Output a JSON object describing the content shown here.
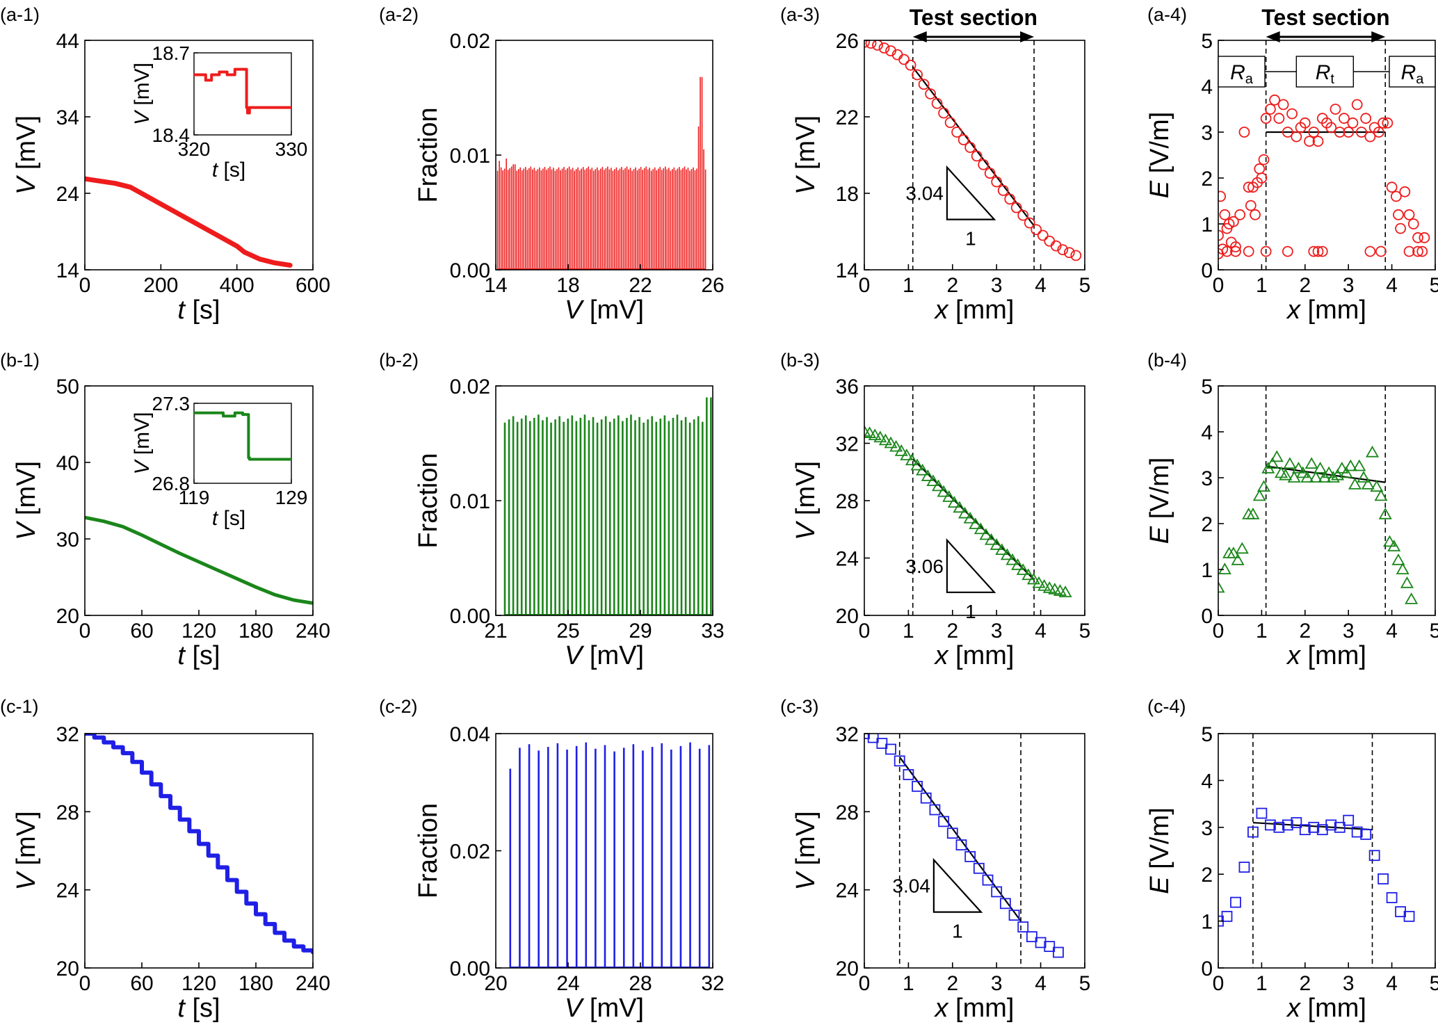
{
  "colors": {
    "red": "#ee1c1c",
    "green": "#1a861a",
    "blue": "#1f1fe6",
    "axis": "#000000"
  },
  "annotations": {
    "test_section": "Test section",
    "Ra_left": "R",
    "Ra_left_sub": "a",
    "Rt": "R",
    "Rt_sub": "t",
    "Ra_right": "R",
    "Ra_right_sub": "a"
  },
  "chart_data": [
    {
      "id": "a-1",
      "panel_label": "(a-1)",
      "type": "line",
      "color": "red",
      "xlabel_italic": "t",
      "xlabel_unit": " [s]",
      "ylabel_italic": "V",
      "ylabel_unit": " [mV]",
      "xlim": [
        0,
        600
      ],
      "ylim": [
        14,
        44
      ],
      "xticks": [
        0,
        200,
        400,
        600
      ],
      "yticks": [
        14,
        24,
        34,
        44
      ],
      "line_width": 7,
      "x": [
        0,
        40,
        80,
        120,
        160,
        200,
        240,
        280,
        320,
        360,
        400,
        420,
        460,
        500,
        540
      ],
      "y": [
        25.9,
        25.6,
        25.3,
        24.8,
        23.7,
        22.6,
        21.5,
        20.4,
        19.3,
        18.2,
        17.1,
        16.3,
        15.4,
        14.9,
        14.6
      ],
      "inset": {
        "xlim": [
          320,
          330
        ],
        "ylim": [
          18.4,
          18.7
        ],
        "xticks": [
          320,
          330
        ],
        "yticks": [
          18.4,
          18.7
        ],
        "xlabel_italic": "t",
        "xlabel_unit": " [s]",
        "ylabel_italic": "V",
        "ylabel_unit": " [mV]",
        "x": [
          320,
          321.2,
          321.2,
          321.8,
          321.8,
          322.6,
          322.6,
          323.4,
          323.4,
          324.2,
          324.2,
          325.4,
          325.4,
          325.5,
          325.5,
          325.7,
          325.7,
          330
        ],
        "y": [
          18.62,
          18.62,
          18.6,
          18.6,
          18.62,
          18.62,
          18.63,
          18.63,
          18.62,
          18.62,
          18.64,
          18.64,
          18.5,
          18.5,
          18.48,
          18.48,
          18.5,
          18.5
        ]
      }
    },
    {
      "id": "a-2",
      "panel_label": "(a-2)",
      "type": "bar",
      "color": "red",
      "xlabel_italic": "V",
      "xlabel_unit": " [mV]",
      "ylabel": "Fraction",
      "xlim": [
        14,
        26
      ],
      "ylim": [
        0,
        0.02
      ],
      "xticks": [
        14,
        18,
        22,
        26
      ],
      "yticks": [
        0.0,
        0.01,
        0.02
      ],
      "ytick_labels": [
        "0.00",
        "0.01",
        "0.02"
      ],
      "spikes": {
        "start": 14.1,
        "end": 25.6,
        "count": 120,
        "base": 0.009,
        "heights": [
          [
            14.2,
            0.0095
          ],
          [
            14.6,
            0.0097
          ],
          [
            15.0,
            0.0092
          ],
          [
            25.2,
            0.0125
          ],
          [
            25.35,
            0.0168
          ],
          [
            25.5,
            0.0105
          ]
        ]
      }
    },
    {
      "id": "a-3",
      "panel_label": "(a-3)",
      "type": "scatter",
      "marker": "circle",
      "color": "red",
      "xlabel_italic": "x",
      "xlabel_unit": " [mm]",
      "ylabel_italic": "V",
      "ylabel_unit": " [mV]",
      "xlim": [
        0,
        5
      ],
      "ylim": [
        14,
        26
      ],
      "xticks": [
        0,
        1,
        2,
        3,
        4,
        5
      ],
      "yticks": [
        14,
        18,
        22,
        26
      ],
      "vlines": [
        1.1,
        3.85
      ],
      "show_test_section": true,
      "points_x": [
        0.0,
        0.15,
        0.3,
        0.45,
        0.6,
        0.75,
        0.9,
        1.05,
        1.2,
        1.35,
        1.5,
        1.65,
        1.8,
        1.95,
        2.1,
        2.25,
        2.4,
        2.55,
        2.7,
        2.85,
        3.0,
        3.15,
        3.3,
        3.45,
        3.6,
        3.75,
        3.9,
        4.05,
        4.2,
        4.35,
        4.5,
        4.65,
        4.8
      ],
      "points_y": [
        25.9,
        25.85,
        25.75,
        25.6,
        25.45,
        25.25,
        25.0,
        24.7,
        24.2,
        23.7,
        23.2,
        22.7,
        22.2,
        21.7,
        21.2,
        20.8,
        20.4,
        19.95,
        19.5,
        19.05,
        18.6,
        18.15,
        17.7,
        17.25,
        16.85,
        16.45,
        16.1,
        15.8,
        15.5,
        15.25,
        15.05,
        14.9,
        14.75
      ],
      "fit_x": [
        1.1,
        3.85
      ],
      "fit_y": [
        24.6,
        16.3
      ],
      "slope_label": "3.04",
      "run_label": "1"
    },
    {
      "id": "a-4",
      "panel_label": "(a-4)",
      "type": "scatter",
      "marker": "circle",
      "color": "red",
      "xlabel_italic": "x",
      "xlabel_unit": " [mm]",
      "ylabel_italic": "E",
      "ylabel_unit": " [V/m]",
      "xlim": [
        0,
        5
      ],
      "ylim": [
        0,
        5
      ],
      "xticks": [
        0,
        1,
        2,
        3,
        4,
        5
      ],
      "yticks": [
        0,
        1,
        2,
        3,
        4,
        5
      ],
      "vlines": [
        1.1,
        3.85
      ],
      "show_test_section": true,
      "show_resistors": true,
      "points_x": [
        0.0,
        0.05,
        0.1,
        0.15,
        0.2,
        0.25,
        0.3,
        0.35,
        0.4,
        0.5,
        0.6,
        0.7,
        0.75,
        0.8,
        0.85,
        0.9,
        0.95,
        1.0,
        1.05,
        1.1,
        1.2,
        1.3,
        1.4,
        1.5,
        1.6,
        1.7,
        1.8,
        1.9,
        2.0,
        2.1,
        2.2,
        2.3,
        2.4,
        2.5,
        2.6,
        2.7,
        2.8,
        2.9,
        3.0,
        3.1,
        3.2,
        3.3,
        3.4,
        3.5,
        3.6,
        3.7,
        3.8,
        3.9,
        4.0,
        4.1,
        4.15,
        4.2,
        4.3,
        4.4,
        4.5,
        4.6,
        4.7,
        4.75,
        0.0,
        0.2,
        0.4,
        0.7,
        1.1,
        1.6,
        2.2,
        2.3,
        2.4,
        3.5,
        3.75,
        4.4,
        4.6
      ],
      "points_y": [
        0.75,
        1.6,
        0.45,
        1.2,
        0.9,
        1.0,
        0.6,
        1.05,
        0.5,
        1.2,
        3.0,
        1.8,
        1.4,
        1.8,
        1.2,
        1.9,
        2.2,
        2.0,
        2.4,
        3.3,
        3.5,
        3.7,
        3.3,
        3.6,
        3.0,
        3.4,
        2.9,
        3.1,
        3.2,
        2.8,
        3.0,
        2.8,
        3.3,
        3.2,
        3.1,
        3.5,
        3.0,
        3.3,
        3.0,
        3.2,
        3.6,
        3.0,
        3.3,
        2.9,
        3.1,
        3.0,
        3.2,
        3.2,
        1.8,
        1.6,
        1.2,
        0.9,
        1.7,
        1.2,
        1.0,
        0.7,
        0.4,
        0.7,
        0.35,
        0.4,
        0.4,
        0.4,
        0.4,
        0.4,
        0.4,
        0.4,
        0.4,
        0.4,
        0.4,
        0.4,
        0.4
      ],
      "fit_x": [
        1.1,
        3.85
      ],
      "fit_y": [
        3.0,
        3.0
      ]
    },
    {
      "id": "b-1",
      "panel_label": "(b-1)",
      "type": "line",
      "color": "green",
      "xlabel_italic": "t",
      "xlabel_unit": " [s]",
      "ylabel_italic": "V",
      "ylabel_unit": " [mV]",
      "xlim": [
        0,
        240
      ],
      "ylim": [
        20,
        50
      ],
      "xticks": [
        0,
        60,
        120,
        180,
        240
      ],
      "yticks": [
        20,
        30,
        40,
        50
      ],
      "line_width": 5,
      "x": [
        0,
        20,
        40,
        60,
        80,
        100,
        120,
        140,
        160,
        180,
        200,
        220,
        240
      ],
      "y": [
        32.8,
        32.3,
        31.6,
        30.5,
        29.3,
        28.1,
        27.0,
        25.9,
        24.8,
        23.7,
        22.7,
        22.0,
        21.6
      ],
      "inset": {
        "xlim": [
          119,
          129
        ],
        "ylim": [
          26.8,
          27.3
        ],
        "xticks": [
          119,
          129
        ],
        "yticks": [
          26.8,
          27.3
        ],
        "xlabel_italic": "t",
        "xlabel_unit": " [s]",
        "ylabel_italic": "V",
        "ylabel_unit": " [mV]",
        "x": [
          119,
          122.0,
          122.0,
          123.2,
          123.2,
          124.0,
          124.0,
          124.6,
          124.6,
          124.7,
          124.7,
          129
        ],
        "y": [
          27.24,
          27.24,
          27.22,
          27.22,
          27.24,
          27.24,
          27.23,
          27.23,
          26.96,
          26.96,
          26.95,
          26.95
        ]
      }
    },
    {
      "id": "b-2",
      "panel_label": "(b-2)",
      "type": "bar",
      "color": "green",
      "xlabel_italic": "V",
      "xlabel_unit": " [mV]",
      "ylabel": "Fraction",
      "xlim": [
        21,
        33
      ],
      "ylim": [
        0,
        0.02
      ],
      "xticks": [
        21,
        25,
        29,
        33
      ],
      "yticks": [
        0.0,
        0.01,
        0.02
      ],
      "ytick_labels": [
        "0.00",
        "0.01",
        "0.02"
      ],
      "spikes": {
        "start": 21.5,
        "end": 32.9,
        "count": 50,
        "base": 0.0175,
        "heights": [
          [
            32.8,
            0.019
          ]
        ]
      }
    },
    {
      "id": "b-3",
      "panel_label": "(b-3)",
      "type": "scatter",
      "marker": "triangle",
      "color": "green",
      "xlabel_italic": "x",
      "xlabel_unit": " [mm]",
      "ylabel_italic": "V",
      "ylabel_unit": " [mV]",
      "xlim": [
        0,
        5
      ],
      "ylim": [
        20,
        36
      ],
      "xticks": [
        0,
        1,
        2,
        3,
        4,
        5
      ],
      "yticks": [
        20,
        24,
        28,
        32,
        36
      ],
      "vlines": [
        1.1,
        3.85
      ],
      "points_x": [
        0.0,
        0.12,
        0.24,
        0.36,
        0.48,
        0.6,
        0.72,
        0.84,
        0.96,
        1.08,
        1.2,
        1.32,
        1.44,
        1.56,
        1.68,
        1.8,
        1.92,
        2.04,
        2.16,
        2.28,
        2.4,
        2.52,
        2.64,
        2.76,
        2.88,
        3.0,
        3.12,
        3.24,
        3.36,
        3.48,
        3.6,
        3.72,
        3.84,
        3.96,
        4.08,
        4.2,
        4.32,
        4.44,
        4.56
      ],
      "points_y": [
        32.8,
        32.7,
        32.55,
        32.4,
        32.2,
        32.0,
        31.75,
        31.45,
        31.15,
        30.8,
        30.45,
        30.1,
        29.7,
        29.35,
        29.0,
        28.6,
        28.25,
        27.85,
        27.5,
        27.1,
        26.75,
        26.35,
        26.0,
        25.6,
        25.25,
        24.9,
        24.55,
        24.2,
        23.85,
        23.5,
        23.15,
        22.8,
        22.5,
        22.25,
        22.05,
        21.9,
        21.8,
        21.7,
        21.6
      ],
      "fit_x": [
        1.1,
        3.85
      ],
      "fit_y": [
        30.9,
        22.5
      ],
      "slope_label": "3.06",
      "run_label": "1"
    },
    {
      "id": "b-4",
      "panel_label": "(b-4)",
      "type": "scatter",
      "marker": "triangle",
      "color": "green",
      "xlabel_italic": "x",
      "xlabel_unit": " [mm]",
      "ylabel_italic": "E",
      "ylabel_unit": " [V/m]",
      "xlim": [
        0,
        5
      ],
      "ylim": [
        0,
        5
      ],
      "xticks": [
        0,
        1,
        2,
        3,
        4,
        5
      ],
      "yticks": [
        0,
        1,
        2,
        3,
        4,
        5
      ],
      "vlines": [
        1.1,
        3.85
      ],
      "points_x": [
        0.0,
        0.15,
        0.25,
        0.35,
        0.45,
        0.55,
        0.7,
        0.8,
        0.95,
        1.05,
        1.15,
        1.25,
        1.35,
        1.45,
        1.55,
        1.65,
        1.75,
        1.85,
        1.95,
        2.05,
        2.15,
        2.25,
        2.35,
        2.45,
        2.55,
        2.65,
        2.75,
        2.85,
        2.95,
        3.05,
        3.15,
        3.25,
        3.35,
        3.45,
        3.55,
        3.65,
        3.75,
        3.85,
        3.95,
        4.05,
        4.15,
        4.25,
        4.35,
        4.45
      ],
      "points_y": [
        0.6,
        1.0,
        1.35,
        1.35,
        1.2,
        1.45,
        2.2,
        2.2,
        2.6,
        2.8,
        3.2,
        3.3,
        3.45,
        3.1,
        3.05,
        3.3,
        3.0,
        3.2,
        3.1,
        3.0,
        3.3,
        3.0,
        3.2,
        3.0,
        3.1,
        3.0,
        3.05,
        3.2,
        3.1,
        3.25,
        2.85,
        3.25,
        3.0,
        2.85,
        3.55,
        2.8,
        2.6,
        2.2,
        1.6,
        1.5,
        1.2,
        1.0,
        0.7,
        0.35
      ],
      "fit_x": [
        1.1,
        3.85
      ],
      "fit_y": [
        3.25,
        2.9
      ]
    },
    {
      "id": "c-1",
      "panel_label": "(c-1)",
      "type": "line",
      "color": "blue",
      "xlabel_italic": "t",
      "xlabel_unit": " [s]",
      "ylabel_italic": "V",
      "ylabel_unit": " [mV]",
      "xlim": [
        0,
        240
      ],
      "ylim": [
        20,
        32
      ],
      "xticks": [
        0,
        60,
        120,
        180,
        240
      ],
      "yticks": [
        20,
        24,
        28,
        32
      ],
      "line_width": 6,
      "staircase": true,
      "x": [
        0,
        10,
        20,
        30,
        40,
        50,
        60,
        70,
        80,
        90,
        100,
        110,
        120,
        130,
        140,
        150,
        160,
        170,
        180,
        190,
        200,
        210,
        220,
        230,
        240
      ],
      "y": [
        32.0,
        31.8,
        31.55,
        31.3,
        31.0,
        30.55,
        30.0,
        29.4,
        28.8,
        28.2,
        27.6,
        27.0,
        26.35,
        25.75,
        25.15,
        24.5,
        23.9,
        23.3,
        22.75,
        22.25,
        21.8,
        21.4,
        21.1,
        20.9,
        20.8
      ]
    },
    {
      "id": "c-2",
      "panel_label": "(c-2)",
      "type": "bar",
      "color": "blue",
      "xlabel_italic": "V",
      "xlabel_unit": " [mV]",
      "ylabel": "Fraction",
      "xlim": [
        20,
        32
      ],
      "ylim": [
        0,
        0.04
      ],
      "xticks": [
        20,
        24,
        28,
        32
      ],
      "yticks": [
        0.0,
        0.02,
        0.04
      ],
      "ytick_labels": [
        "0.00",
        "0.02",
        "0.04"
      ],
      "spikes": {
        "start": 20.8,
        "end": 31.8,
        "count": 22,
        "base": 0.0385,
        "heights": [
          [
            20.8,
            0.034
          ]
        ]
      }
    },
    {
      "id": "c-3",
      "panel_label": "(c-3)",
      "type": "scatter",
      "marker": "square",
      "color": "blue",
      "xlabel_italic": "x",
      "xlabel_unit": " [mm]",
      "ylabel_italic": "V",
      "ylabel_unit": " [mV]",
      "xlim": [
        0,
        5
      ],
      "ylim": [
        20,
        32
      ],
      "xticks": [
        0,
        1,
        2,
        3,
        4,
        5
      ],
      "yticks": [
        20,
        24,
        28,
        32
      ],
      "vlines": [
        0.8,
        3.55
      ],
      "points_x": [
        0.0,
        0.2,
        0.4,
        0.6,
        0.8,
        1.0,
        1.2,
        1.4,
        1.6,
        1.8,
        2.0,
        2.2,
        2.4,
        2.6,
        2.8,
        3.0,
        3.2,
        3.4,
        3.6,
        3.8,
        4.0,
        4.2,
        4.4
      ],
      "points_y": [
        32.0,
        31.8,
        31.5,
        31.2,
        30.6,
        29.9,
        29.3,
        28.7,
        28.1,
        27.5,
        26.9,
        26.3,
        25.7,
        25.1,
        24.5,
        23.9,
        23.3,
        22.7,
        22.1,
        21.6,
        21.3,
        21.1,
        20.8
      ],
      "fit_x": [
        0.8,
        3.55
      ],
      "fit_y": [
        30.8,
        22.4
      ],
      "slope_label": "3.04",
      "run_label": "1"
    },
    {
      "id": "c-4",
      "panel_label": "(c-4)",
      "type": "scatter",
      "marker": "square",
      "color": "blue",
      "xlabel_italic": "x",
      "xlabel_unit": " [mm]",
      "ylabel_italic": "E",
      "ylabel_unit": " [V/m]",
      "xlim": [
        0,
        5
      ],
      "ylim": [
        0,
        5
      ],
      "xticks": [
        0,
        1,
        2,
        3,
        4,
        5
      ],
      "yticks": [
        0,
        1,
        2,
        3,
        4,
        5
      ],
      "vlines": [
        0.8,
        3.55
      ],
      "points_x": [
        0.0,
        0.2,
        0.4,
        0.6,
        0.8,
        1.0,
        1.2,
        1.4,
        1.6,
        1.8,
        2.0,
        2.2,
        2.4,
        2.6,
        2.8,
        3.0,
        3.2,
        3.4,
        3.6,
        3.8,
        4.0,
        4.2,
        4.4
      ],
      "points_y": [
        1.0,
        1.1,
        1.4,
        2.15,
        2.9,
        3.3,
        3.05,
        3.0,
        3.05,
        3.1,
        2.95,
        3.0,
        2.95,
        3.05,
        3.0,
        3.15,
        2.9,
        2.85,
        2.4,
        1.9,
        1.5,
        1.2,
        1.1
      ],
      "fit_x": [
        0.8,
        3.55
      ],
      "fit_y": [
        3.1,
        2.95
      ]
    }
  ]
}
